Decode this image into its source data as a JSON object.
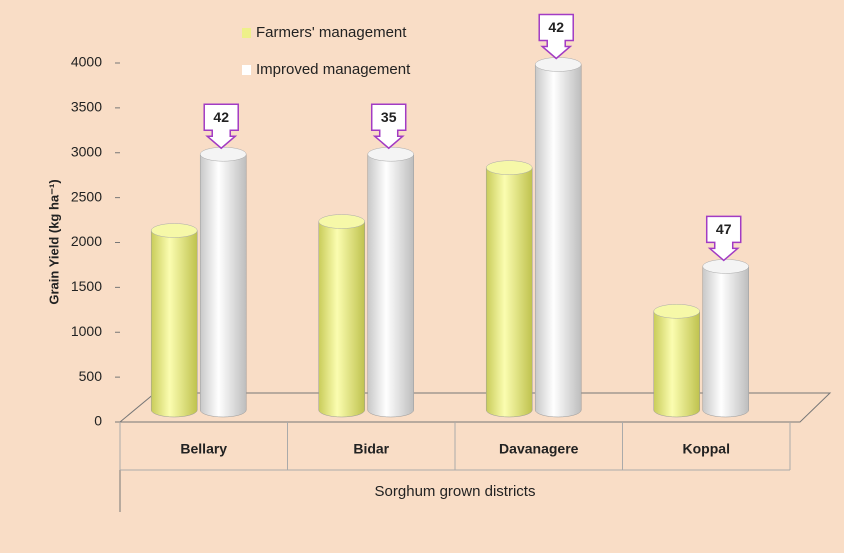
{
  "chart_data": {
    "type": "bar3d",
    "y_label": "Grain Yield (kg ha⁻¹)",
    "x_label": "Sorghum grown districts",
    "categories": [
      "Bellary",
      "Bidar",
      "Davanagere",
      "Koppal"
    ],
    "series": [
      {
        "name": "Farmers' management",
        "color": "#eef08a",
        "values": [
          2000,
          2100,
          2700,
          1100
        ]
      },
      {
        "name": "Improved management",
        "color": "#ffffff",
        "values": [
          2850,
          2850,
          3850,
          1600
        ]
      }
    ],
    "callouts": [
      42,
      35,
      42,
      47
    ],
    "ylim": [
      0,
      4000
    ],
    "yticks": [
      0,
      500,
      1000,
      1500,
      2000,
      2500,
      3000,
      3500,
      4000
    ],
    "grid": false
  }
}
